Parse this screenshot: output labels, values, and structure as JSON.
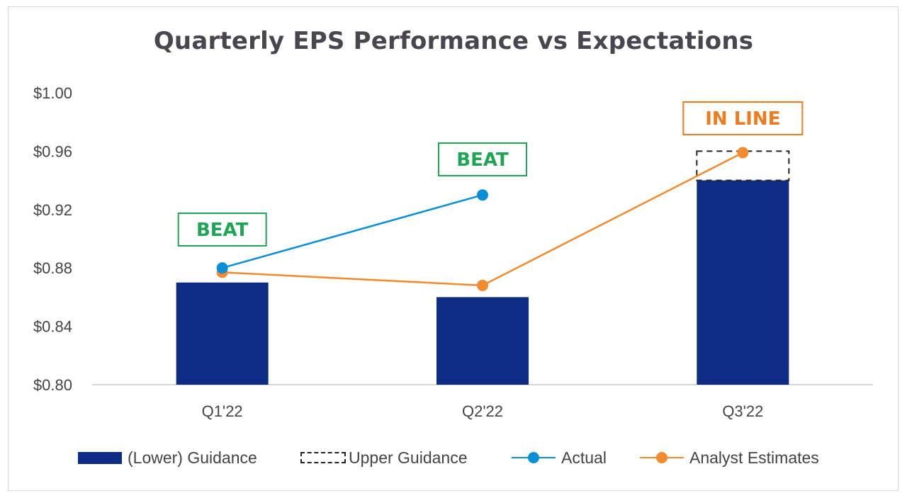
{
  "chart_data": {
    "type": "bar",
    "title": "Quarterly EPS Performance vs Expectations",
    "categories": [
      "Q1'22",
      "Q2'22",
      "Q3'22"
    ],
    "ylim": [
      0.8,
      1.0
    ],
    "yticks": [
      "$0.80",
      "$0.84",
      "$0.88",
      "$0.92",
      "$0.96",
      "$1.00"
    ],
    "ytick_values": [
      0.8,
      0.84,
      0.88,
      0.92,
      0.96,
      1.0
    ],
    "series": [
      {
        "name": "(Lower) Guidance",
        "kind": "bar",
        "values": [
          0.87,
          0.86,
          0.94
        ],
        "color": "#0c2d83"
      },
      {
        "name": "Upper Guidance",
        "kind": "dashed-bar",
        "values": [
          null,
          null,
          0.96
        ],
        "color": "#222222"
      },
      {
        "name": "Actual",
        "kind": "line",
        "values": [
          0.88,
          0.93,
          null
        ],
        "color": "#0a8fd6"
      },
      {
        "name": "Analyst Estimates",
        "kind": "line",
        "values": [
          0.877,
          0.868,
          0.959
        ],
        "color": "#f28a2e"
      }
    ],
    "annotations": [
      {
        "category": "Q1'22",
        "text": "BEAT",
        "color": "#1fa655"
      },
      {
        "category": "Q2'22",
        "text": "BEAT",
        "color": "#1fa655"
      },
      {
        "category": "Q3'22",
        "text": "IN LINE",
        "color": "#f07a1c"
      }
    ],
    "grid": false,
    "legend_position": "bottom"
  },
  "legend": {
    "lower_guidance": "(Lower) Guidance",
    "upper_guidance": "Upper Guidance",
    "actual": "Actual",
    "analyst_estimates": "Analyst Estimates"
  }
}
